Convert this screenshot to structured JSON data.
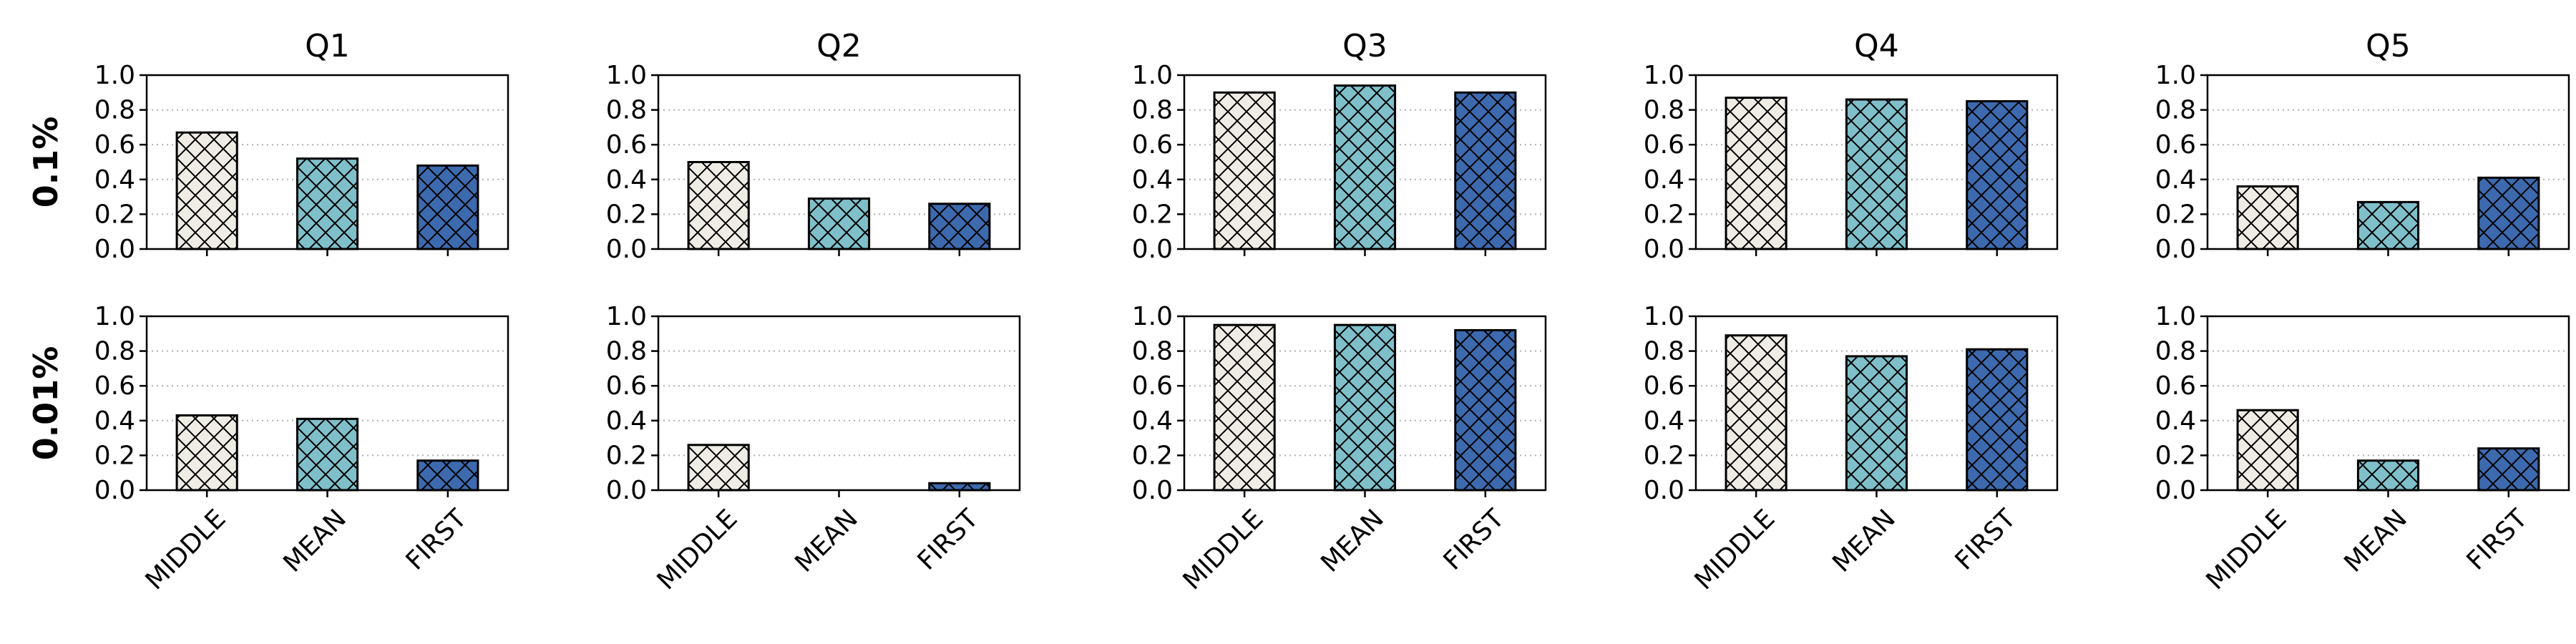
{
  "chart_data": {
    "type": "bar",
    "title": "",
    "categories": [
      "MIDDLE",
      "MEAN",
      "FIRST"
    ],
    "column_titles": [
      "Q1",
      "Q2",
      "Q3",
      "Q4",
      "Q5"
    ],
    "row_labels": [
      "0.1%",
      "0.01%"
    ],
    "ylim": [
      0,
      1.0
    ],
    "yticks": [
      "0.0",
      "0.2",
      "0.4",
      "0.6",
      "0.8",
      "1.0"
    ],
    "grid": "horizontal dotted",
    "hatch": "cross-hatch",
    "colors": {
      "MIDDLE": "#efece6",
      "MEAN": "#7fbfca",
      "FIRST": "#3d6aae"
    },
    "panels": [
      {
        "row": "0.1%",
        "column": "Q1",
        "values": [
          0.67,
          0.52,
          0.48
        ]
      },
      {
        "row": "0.1%",
        "column": "Q2",
        "values": [
          0.5,
          0.29,
          0.26
        ]
      },
      {
        "row": "0.1%",
        "column": "Q3",
        "values": [
          0.9,
          0.94,
          0.9
        ]
      },
      {
        "row": "0.1%",
        "column": "Q4",
        "values": [
          0.87,
          0.86,
          0.85
        ]
      },
      {
        "row": "0.1%",
        "column": "Q5",
        "values": [
          0.36,
          0.27,
          0.41
        ]
      },
      {
        "row": "0.01%",
        "column": "Q1",
        "values": [
          0.43,
          0.41,
          0.17
        ]
      },
      {
        "row": "0.01%",
        "column": "Q2",
        "values": [
          0.26,
          0.0,
          0.04
        ]
      },
      {
        "row": "0.01%",
        "column": "Q3",
        "values": [
          0.95,
          0.95,
          0.92
        ]
      },
      {
        "row": "0.01%",
        "column": "Q4",
        "values": [
          0.89,
          0.77,
          0.81
        ]
      },
      {
        "row": "0.01%",
        "column": "Q5",
        "values": [
          0.46,
          0.17,
          0.24
        ]
      }
    ]
  }
}
